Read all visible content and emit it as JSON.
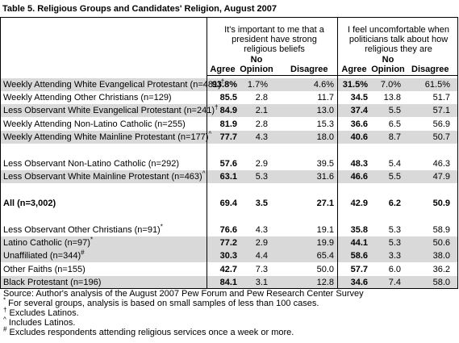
{
  "title": "Table 5. Religious Groups and Candidates' Religion, August 2007",
  "groups": [
    "It's important to me that a president have strong religious beliefs",
    "I feel uncomfortable when politicians talk about how religious they are"
  ],
  "columns": [
    "Agree",
    "No Opinion",
    "Disagree",
    "Agree",
    "No Opinion",
    "Disagree"
  ],
  "rows": [
    {
      "label": "Weekly Attending White Evangelical Protestant (n=481)",
      "mark": "†",
      "cells": [
        "93.8%",
        "1.7%",
        "4.6%",
        "31.5%",
        "7.0%",
        "61.5%"
      ]
    },
    {
      "label": "Weekly Attending Other Christians (n=129)",
      "cells": [
        "85.5",
        "2.8",
        "11.7",
        "34.5",
        "13.8",
        "51.7"
      ]
    },
    {
      "label": "Less Observant White Evangelical Protestant (n=241)",
      "mark": "†",
      "cells": [
        "84.9",
        "2.1",
        "13.0",
        "37.4",
        "5.5",
        "57.1"
      ]
    },
    {
      "label": "Weekly Attending Non-Latino Catholic (n=255)",
      "cells": [
        "81.9",
        "2.8",
        "15.3",
        "36.6",
        "6.5",
        "56.9"
      ]
    },
    {
      "label": "Weekly Attending White Mainline Protestant (n=177)",
      "mark": "^",
      "cells": [
        "77.7",
        "4.3",
        "18.0",
        "40.6",
        "8.7",
        "50.7"
      ]
    },
    {
      "label": "Less Observant Non-Latino Catholic (n=292)",
      "cells": [
        "57.6",
        "2.9",
        "39.5",
        "48.3",
        "5.4",
        "46.3"
      ]
    },
    {
      "label": "Less Observant White Mainline Protestant (n=463)",
      "mark": "^",
      "cells": [
        "63.1",
        "5.3",
        "31.6",
        "46.6",
        "5.5",
        "47.9"
      ]
    },
    {
      "label": "All (n=3,002)",
      "cells": [
        "69.4",
        "3.5",
        "27.1",
        "42.9",
        "6.2",
        "50.9"
      ]
    },
    {
      "label": "Less Observant Other Christians (n=91)",
      "mark": "*",
      "cells": [
        "76.6",
        "4.3",
        "19.1",
        "35.8",
        "5.3",
        "58.9"
      ]
    },
    {
      "label": "Latino Catholic (n=97)",
      "mark": "*",
      "cells": [
        "77.2",
        "2.9",
        "19.9",
        "44.1",
        "5.3",
        "50.6"
      ]
    },
    {
      "label": "Unaffiliated (n=344)",
      "mark": "#",
      "cells": [
        "30.3",
        "4.4",
        "65.4",
        "58.6",
        "3.3",
        "38.0"
      ]
    },
    {
      "label": "Other Faiths (n=155)",
      "cells": [
        "42.7",
        "7.3",
        "50.0",
        "57.7",
        "6.0",
        "36.2"
      ]
    },
    {
      "label": "Black Protestant (n=196)",
      "cells": [
        "84.1",
        "3.1",
        "12.8",
        "34.6",
        "7.4",
        "58.0"
      ]
    }
  ],
  "notes": [
    {
      "text": "Source: Author's analysis of the August 2007 Pew Forum and Pew Research Center Survey"
    },
    {
      "mark": "*",
      "text": " For several groups, analysis is based on small samples of less than 100 cases."
    },
    {
      "mark": "†",
      "text": " Excludes Latinos."
    },
    {
      "mark": "^",
      "text": " Includes Latinos."
    },
    {
      "mark": "#",
      "text": " Excludes respondents attending religious services once a week or more."
    }
  ]
}
